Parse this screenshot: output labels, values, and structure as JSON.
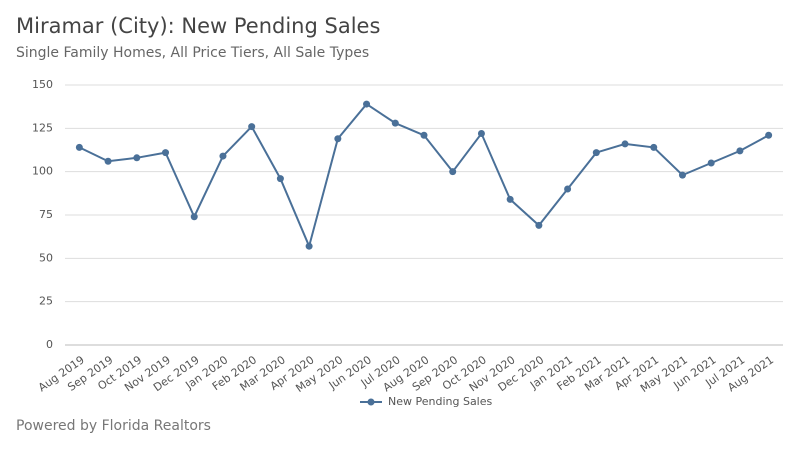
{
  "chart_data": {
    "type": "line",
    "title": "Miramar (City): New Pending Sales",
    "subtitle": "Single Family Homes, All Price Tiers, All Sale Types",
    "source": "Powered by Florida Realtors",
    "categories": [
      "Aug 2019",
      "Sep 2019",
      "Oct 2019",
      "Nov 2019",
      "Dec 2019",
      "Jan 2020",
      "Feb 2020",
      "Mar 2020",
      "Apr 2020",
      "May 2020",
      "Jun 2020",
      "Jul 2020",
      "Aug 2020",
      "Sep 2020",
      "Oct 2020",
      "Nov 2020",
      "Dec 2020",
      "Jan 2021",
      "Feb 2021",
      "Mar 2021",
      "Apr 2021",
      "May 2021",
      "Jun 2021",
      "Jul 2021",
      "Aug 2021"
    ],
    "series": [
      {
        "name": "New Pending Sales",
        "color": "#4a7098",
        "values": [
          114,
          106,
          108,
          111,
          74,
          109,
          126,
          96,
          57,
          119,
          139,
          128,
          121,
          100,
          122,
          84,
          69,
          90,
          111,
          116,
          114,
          98,
          105,
          112,
          121
        ]
      }
    ],
    "ylim": [
      0,
      150
    ],
    "yticks": [
      0,
      25,
      50,
      75,
      100,
      125,
      150
    ],
    "grid": true,
    "legend": "bottom"
  }
}
